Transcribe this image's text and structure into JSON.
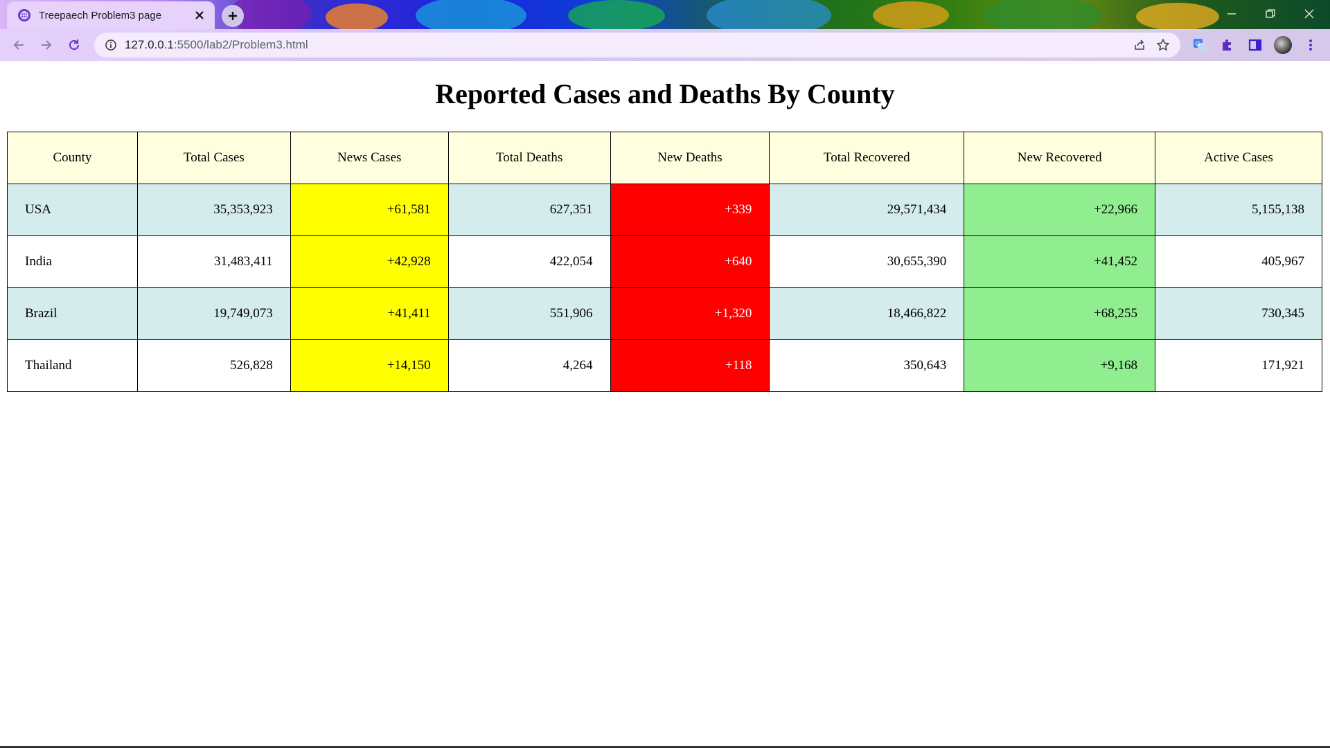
{
  "browser": {
    "tab_title": "Treepaech Problem3 page",
    "url_host": "127.0.0.1",
    "url_path": ":5500/lab2/Problem3.html"
  },
  "page": {
    "title": "Reported Cases and Deaths By County"
  },
  "table": {
    "headers": [
      "County",
      "Total Cases",
      "News Cases",
      "Total Deaths",
      "New Deaths",
      "Total Recovered",
      "New Recovered",
      "Active Cases"
    ],
    "rows": [
      [
        "USA",
        "35,353,923",
        "+61,581",
        "627,351",
        "+339",
        "29,571,434",
        "+22,966",
        "5,155,138"
      ],
      [
        "India",
        "31,483,411",
        "+42,928",
        "422,054",
        "+640",
        "30,655,390",
        "+41,452",
        "405,967"
      ],
      [
        "Brazil",
        "19,749,073",
        "+41,411",
        "551,906",
        "+1,320",
        "18,466,822",
        "+68,255",
        "730,345"
      ],
      [
        "Thailand",
        "526,828",
        "+14,150",
        "4,264",
        "+118",
        "350,643",
        "+9,168",
        "171,921"
      ]
    ]
  },
  "colors": {
    "header_bg": "#ffffe0",
    "alt_row_bg": "#d5ecec",
    "new_cases_bg": "#ffff00",
    "new_deaths_bg": "#ff0000",
    "new_recovered_bg": "#90ee90"
  },
  "icons": {
    "back": "arrow-left-icon",
    "forward": "arrow-right-icon",
    "reload": "reload-icon",
    "info": "info-icon",
    "share": "share-icon",
    "bookmark": "star-icon",
    "translate": "translate-icon",
    "extensions": "puzzle-icon",
    "side_panel": "side-panel-icon",
    "menu": "kebab-menu-icon"
  }
}
